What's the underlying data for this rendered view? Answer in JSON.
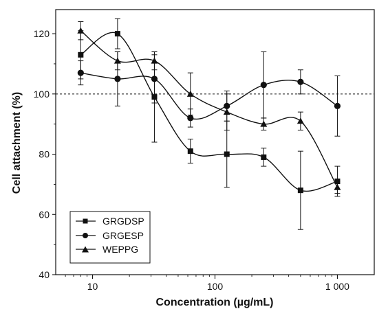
{
  "chart_data": {
    "type": "scatter",
    "title": "",
    "xlabel": "Concentration (µg/mL)",
    "ylabel": "Cell attachment (%)",
    "xscale": "log",
    "xlim": [
      5,
      2000
    ],
    "ylim": [
      40,
      128
    ],
    "x_ticks": [
      10,
      100,
      1000
    ],
    "x_tick_labels": [
      "10",
      "100",
      "1 000"
    ],
    "y_ticks": [
      40,
      60,
      80,
      100,
      120
    ],
    "y_tick_labels": [
      "40",
      "60",
      "80",
      "100",
      "120"
    ],
    "reference_line": {
      "y": 100,
      "style": "dashed"
    },
    "grid": false,
    "legend": {
      "position": "bottom-left"
    },
    "x": [
      8,
      16,
      32,
      63,
      125,
      250,
      500,
      1000
    ],
    "series": [
      {
        "name": "GRGDSP",
        "marker": "square",
        "color": "#111111",
        "values": [
          113,
          120,
          99,
          81,
          80,
          79,
          68,
          71
        ],
        "errors": [
          8,
          5,
          15,
          4,
          11,
          3,
          13,
          5
        ]
      },
      {
        "name": "GRGESP",
        "marker": "circle",
        "color": "#111111",
        "values": [
          107,
          105,
          105,
          92,
          96,
          103,
          104,
          96
        ],
        "errors": [
          4,
          9,
          8,
          3,
          5,
          11,
          4,
          10
        ]
      },
      {
        "name": "WEPPG",
        "marker": "triangle",
        "color": "#111111",
        "values": [
          121,
          111,
          111,
          100,
          94,
          90,
          91,
          69
        ],
        "errors": [
          3,
          3,
          3,
          7,
          6,
          2,
          3,
          2
        ]
      }
    ]
  }
}
